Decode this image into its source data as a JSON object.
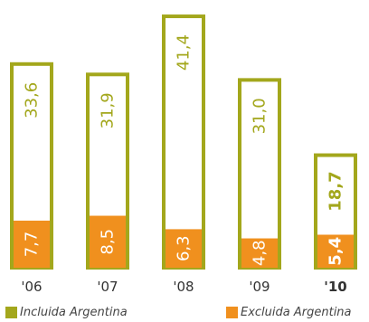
{
  "chart_data": {
    "type": "bar",
    "categories": [
      "'06",
      "'07",
      "'08",
      "'09",
      "'10"
    ],
    "highlight_category": "'10",
    "series": [
      {
        "name": "Incluida Argentina",
        "values": [
          33.6,
          31.9,
          41.4,
          31.0,
          18.7
        ],
        "labels": [
          "33,6",
          "31,9",
          "41,4",
          "31,0",
          "18,7"
        ]
      },
      {
        "name": "Excluida Argentina",
        "values": [
          7.7,
          8.5,
          6.3,
          4.8,
          5.4
        ],
        "labels": [
          "7,7",
          "8,5",
          "6,3",
          "4,8",
          "5,4"
        ]
      }
    ],
    "ylim": [
      0,
      42
    ],
    "grid": false,
    "legend_position": "bottom",
    "title": "",
    "xlabel": "",
    "ylabel": ""
  },
  "colors": {
    "incluida": "#A3A71C",
    "excluida": "#F0901E",
    "excluida_text": "#FFFFFF",
    "axis_text": "#333333"
  }
}
